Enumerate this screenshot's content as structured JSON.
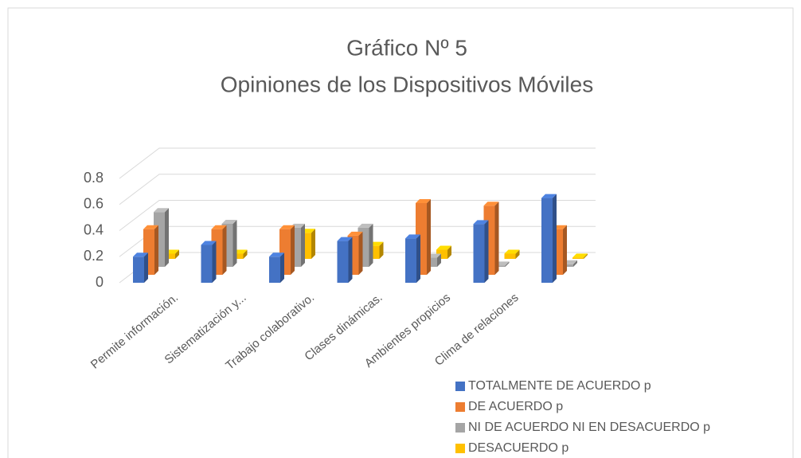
{
  "chart_data": {
    "type": "bar3d",
    "title": "Gráfico Nº 5",
    "subtitle": "Opiniones de los Dispositivos Móviles",
    "categories": [
      "Permite información.",
      "Sistematización y...",
      "Trabajo colaborativo.",
      "Clases dinámicas.",
      "Ambientes propicios",
      "Clima de relaciones",
      null
    ],
    "series": [
      {
        "name": "TOTALMENTE DE ACUERDO p",
        "color": "#4472c4",
        "values": [
          0.2,
          0.29,
          0.2,
          0.32,
          0.34,
          0.45,
          0.65
        ]
      },
      {
        "name": "DE ACUERDO p",
        "color": "#ed7d31",
        "values": [
          0.35,
          0.35,
          0.35,
          0.3,
          0.55,
          0.53,
          0.35
        ]
      },
      {
        "name": "NI DE ACUERDO NI EN DESACUERDO p",
        "color": "#a5a5a5",
        "values": [
          0.42,
          0.33,
          0.3,
          0.3,
          0.07,
          0.01,
          0.02
        ]
      },
      {
        "name": "DESACUERDO p",
        "color": "#ffc000",
        "values": [
          0.04,
          0.04,
          0.2,
          0.1,
          0.07,
          0.04,
          0.01
        ]
      }
    ],
    "ylim": [
      0,
      0.8
    ],
    "yticks": [
      0,
      0.2,
      0.4,
      0.6,
      0.8
    ],
    "grid": true,
    "legend": "bottom-right"
  }
}
